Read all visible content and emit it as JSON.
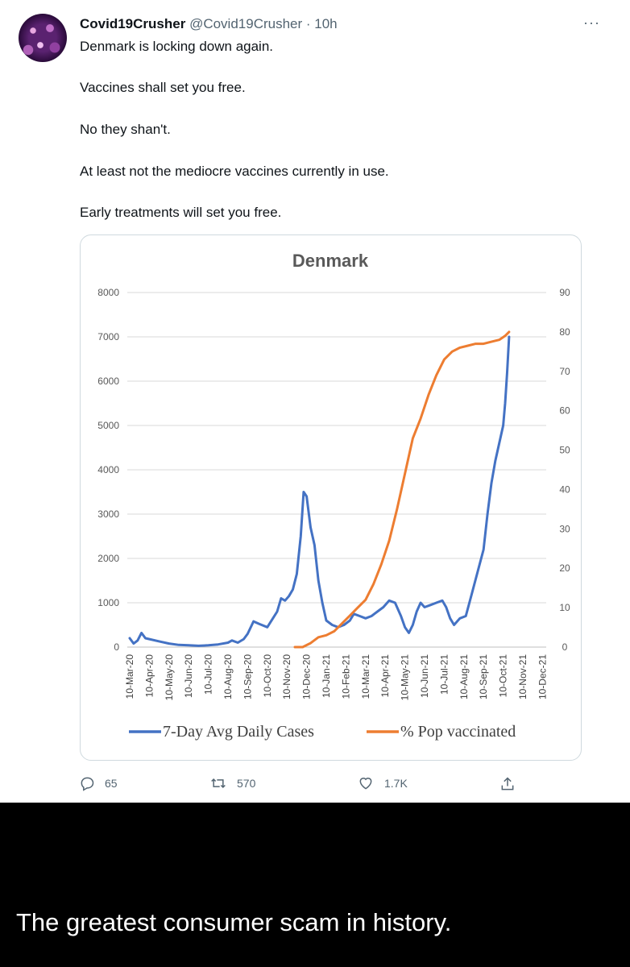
{
  "tweet": {
    "display_name": "Covid19Crusher",
    "handle": "@Covid19Crusher",
    "time": "· 10h",
    "more_icon": "···",
    "lines": [
      "Denmark is locking down again.",
      "Vaccines shall set you free.",
      "No they shan't.",
      "At least not the mediocre vaccines currently in use.",
      "Early treatments will set you free."
    ],
    "actions": {
      "reply_count": "65",
      "retweet_count": "570",
      "like_count": "1.7K"
    }
  },
  "caption": "The greatest consumer scam in history.",
  "chart_data": {
    "type": "line",
    "title": "Denmark",
    "x_tick_labels": [
      "10-Mar-20",
      "10-Apr-20",
      "10-May-20",
      "10-Jun-20",
      "10-Jul-20",
      "10-Aug-20",
      "10-Sep-20",
      "10-Oct-20",
      "10-Nov-20",
      "10-Dec-20",
      "10-Jan-21",
      "10-Feb-21",
      "10-Mar-21",
      "10-Apr-21",
      "10-May-21",
      "10-Jun-21",
      "10-Jul-21",
      "10-Aug-21",
      "10-Sep-21",
      "10-Oct-21",
      "10-Nov-21",
      "10-Dec-21"
    ],
    "y_left": {
      "min": 0,
      "max": 8000,
      "ticks": [
        0,
        1000,
        2000,
        3000,
        4000,
        5000,
        6000,
        7000,
        8000
      ],
      "tick_labels": [
        "0",
        "1000",
        "2000",
        "3000",
        "4000",
        "5000",
        "6000",
        "7000",
        "8000"
      ]
    },
    "y_right": {
      "min": 0,
      "max": 90,
      "ticks": [
        0,
        10,
        20,
        30,
        40,
        50,
        60,
        70,
        80,
        90
      ],
      "tick_labels": [
        "0",
        "10",
        "20",
        "30",
        "40",
        "50",
        "60",
        "70",
        "80",
        "90"
      ]
    },
    "grid": true,
    "legend_position": "bottom",
    "series": [
      {
        "name": "7-Day Avg Daily Cases",
        "color": "#4472C4",
        "axis": "left",
        "points": [
          [
            0,
            200
          ],
          [
            0.2,
            80
          ],
          [
            0.4,
            150
          ],
          [
            0.6,
            320
          ],
          [
            0.8,
            200
          ],
          [
            1,
            180
          ],
          [
            1.5,
            130
          ],
          [
            2,
            80
          ],
          [
            2.5,
            50
          ],
          [
            3,
            40
          ],
          [
            3.5,
            30
          ],
          [
            4,
            40
          ],
          [
            4.5,
            60
          ],
          [
            5,
            100
          ],
          [
            5.2,
            150
          ],
          [
            5.5,
            100
          ],
          [
            5.8,
            180
          ],
          [
            6,
            300
          ],
          [
            6.3,
            580
          ],
          [
            6.6,
            520
          ],
          [
            7,
            450
          ],
          [
            7.5,
            800
          ],
          [
            7.7,
            1100
          ],
          [
            7.9,
            1050
          ],
          [
            8.1,
            1150
          ],
          [
            8.3,
            1300
          ],
          [
            8.5,
            1650
          ],
          [
            8.7,
            2500
          ],
          [
            8.85,
            3500
          ],
          [
            9,
            3400
          ],
          [
            9.2,
            2700
          ],
          [
            9.4,
            2300
          ],
          [
            9.6,
            1500
          ],
          [
            9.8,
            1000
          ],
          [
            10,
            600
          ],
          [
            10.3,
            500
          ],
          [
            10.6,
            450
          ],
          [
            10.9,
            500
          ],
          [
            11.2,
            600
          ],
          [
            11.4,
            750
          ],
          [
            11.7,
            700
          ],
          [
            12,
            650
          ],
          [
            12.3,
            700
          ],
          [
            12.6,
            800
          ],
          [
            12.9,
            900
          ],
          [
            13.2,
            1050
          ],
          [
            13.5,
            1000
          ],
          [
            13.8,
            700
          ],
          [
            14,
            450
          ],
          [
            14.2,
            320
          ],
          [
            14.4,
            500
          ],
          [
            14.6,
            800
          ],
          [
            14.8,
            1000
          ],
          [
            15,
            900
          ],
          [
            15.3,
            950
          ],
          [
            15.6,
            1000
          ],
          [
            15.9,
            1050
          ],
          [
            16.1,
            900
          ],
          [
            16.3,
            650
          ],
          [
            16.5,
            500
          ],
          [
            16.8,
            650
          ],
          [
            17.1,
            700
          ],
          [
            17.4,
            1200
          ],
          [
            17.7,
            1700
          ],
          [
            18,
            2200
          ],
          [
            18.2,
            3000
          ],
          [
            18.4,
            3700
          ],
          [
            18.6,
            4200
          ],
          [
            18.8,
            4600
          ],
          [
            19.0,
            5000
          ],
          [
            19.1,
            5500
          ],
          [
            19.2,
            6200
          ],
          [
            19.3,
            7000
          ]
        ]
      },
      {
        "name": "% Pop vaccinated",
        "color": "#ED7D31",
        "axis": "right",
        "points": [
          [
            8.4,
            0
          ],
          [
            8.8,
            0
          ],
          [
            9.2,
            1
          ],
          [
            9.6,
            2.5
          ],
          [
            10,
            3
          ],
          [
            10.4,
            4
          ],
          [
            10.8,
            6
          ],
          [
            11.2,
            8
          ],
          [
            11.6,
            10
          ],
          [
            12,
            12
          ],
          [
            12.4,
            16
          ],
          [
            12.8,
            21
          ],
          [
            13.2,
            27
          ],
          [
            13.6,
            35
          ],
          [
            14,
            44
          ],
          [
            14.4,
            53
          ],
          [
            14.8,
            58
          ],
          [
            15.2,
            64
          ],
          [
            15.6,
            69
          ],
          [
            16,
            73
          ],
          [
            16.4,
            75
          ],
          [
            16.8,
            76
          ],
          [
            17.2,
            76.5
          ],
          [
            17.6,
            77
          ],
          [
            18,
            77
          ],
          [
            18.4,
            77.5
          ],
          [
            18.8,
            78
          ],
          [
            19.1,
            79
          ],
          [
            19.3,
            80
          ]
        ]
      }
    ]
  }
}
